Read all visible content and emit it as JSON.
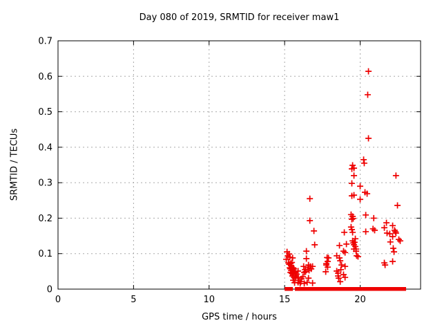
{
  "chart_data": {
    "type": "scatter",
    "title": "Day 080 of 2019, SRMTID for receiver maw1",
    "xlabel": "GPS time / hours",
    "ylabel": "SRMTID / TECUs",
    "xlim": [
      0,
      24
    ],
    "ylim": [
      0,
      0.7
    ],
    "xticks": [
      0,
      5,
      10,
      15,
      20
    ],
    "xtick_labels": [
      "0",
      "5",
      "10",
      "15",
      "20"
    ],
    "yticks": [
      0,
      0.1,
      0.2,
      0.3,
      0.4,
      0.5,
      0.6,
      0.7
    ],
    "ytick_labels": [
      "0",
      "0.1",
      "0.2",
      "0.3",
      "0.4",
      "0.5",
      "0.6",
      "0.7"
    ],
    "grid": true,
    "grid_style": "dotted",
    "legend_position": "none",
    "marker": "plus",
    "marker_color": "#ee0000",
    "grid_color": "#a8a8a8",
    "axis_color": "#000000",
    "background_color": "#ffffff",
    "series": [
      {
        "name": "SRMTID",
        "points": [
          [
            15.16,
            0.105
          ],
          [
            15.21,
            0.094
          ],
          [
            15.3,
            0.099
          ],
          [
            15.34,
            0.09
          ],
          [
            15.53,
            0.088
          ],
          [
            15.11,
            0.084
          ],
          [
            15.25,
            0.074
          ],
          [
            15.3,
            0.07
          ],
          [
            15.39,
            0.072
          ],
          [
            15.43,
            0.066
          ],
          [
            15.48,
            0.075
          ],
          [
            15.34,
            0.06
          ],
          [
            15.39,
            0.057
          ],
          [
            15.43,
            0.052
          ],
          [
            15.48,
            0.06
          ],
          [
            15.52,
            0.055
          ],
          [
            15.57,
            0.06
          ],
          [
            15.62,
            0.057
          ],
          [
            15.39,
            0.047
          ],
          [
            15.48,
            0.044
          ],
          [
            15.57,
            0.048
          ],
          [
            15.62,
            0.042
          ],
          [
            15.66,
            0.051
          ],
          [
            15.71,
            0.047
          ],
          [
            15.52,
            0.037
          ],
          [
            15.62,
            0.033
          ],
          [
            15.71,
            0.031
          ],
          [
            15.57,
            0.025
          ],
          [
            15.75,
            0.037
          ],
          [
            15.8,
            0.042
          ],
          [
            15.89,
            0.051
          ],
          [
            15.89,
            0.033
          ],
          [
            15.94,
            0.025
          ],
          [
            15.89,
            0.019
          ],
          [
            16.03,
            0.016
          ],
          [
            16.12,
            0.029
          ],
          [
            16.21,
            0.035
          ],
          [
            16.26,
            0.064
          ],
          [
            16.3,
            0.047
          ],
          [
            16.35,
            0.055
          ],
          [
            16.39,
            0.049
          ],
          [
            16.44,
            0.086
          ],
          [
            16.44,
            0.107
          ],
          [
            16.53,
            0.06
          ],
          [
            16.58,
            0.068
          ],
          [
            16.58,
            0.031
          ],
          [
            16.62,
            0.053
          ],
          [
            16.71,
            0.064
          ],
          [
            16.76,
            0.057
          ],
          [
            16.85,
            0.064
          ],
          [
            16.94,
            0.164
          ],
          [
            16.99,
            0.125
          ],
          [
            16.67,
            0.255
          ],
          [
            16.67,
            0.193
          ],
          [
            15.66,
            0.018
          ],
          [
            16.08,
            0.021
          ],
          [
            16.3,
            0.016
          ],
          [
            16.49,
            0.019
          ],
          [
            16.85,
            0.017
          ],
          [
            17.72,
            0.049
          ],
          [
            17.76,
            0.068
          ],
          [
            17.76,
            0.072
          ],
          [
            17.81,
            0.089
          ],
          [
            17.85,
            0.062
          ],
          [
            17.85,
            0.078
          ],
          [
            17.9,
            0.088
          ],
          [
            18.45,
            0.051
          ],
          [
            18.54,
            0.045
          ],
          [
            18.54,
            0.037
          ],
          [
            18.58,
            0.031
          ],
          [
            18.63,
            0.088
          ],
          [
            18.63,
            0.123
          ],
          [
            18.68,
            0.08
          ],
          [
            18.77,
            0.068
          ],
          [
            18.9,
            0.107
          ],
          [
            18.9,
            0.041
          ],
          [
            18.95,
            0.16
          ],
          [
            19.0,
            0.103
          ],
          [
            19.0,
            0.064
          ],
          [
            19.0,
            0.033
          ],
          [
            18.68,
            0.021
          ],
          [
            19.09,
            0.127
          ],
          [
            18.45,
            0.094
          ],
          [
            18.72,
            0.055
          ],
          [
            19.45,
            0.339
          ],
          [
            19.5,
            0.349
          ],
          [
            19.59,
            0.341
          ],
          [
            19.59,
            0.32
          ],
          [
            19.45,
            0.298
          ],
          [
            19.59,
            0.265
          ],
          [
            19.45,
            0.263
          ],
          [
            19.4,
            0.21
          ],
          [
            19.45,
            0.197
          ],
          [
            19.5,
            0.205
          ],
          [
            19.54,
            0.199
          ],
          [
            19.4,
            0.175
          ],
          [
            19.45,
            0.168
          ],
          [
            19.5,
            0.16
          ],
          [
            19.68,
            0.142
          ],
          [
            19.5,
            0.136
          ],
          [
            19.54,
            0.13
          ],
          [
            19.59,
            0.125
          ],
          [
            19.63,
            0.132
          ],
          [
            19.68,
            0.12
          ],
          [
            19.73,
            0.113
          ],
          [
            19.59,
            0.113
          ],
          [
            19.73,
            0.107
          ],
          [
            19.77,
            0.094
          ],
          [
            19.86,
            0.092
          ],
          [
            20.0,
            0.29
          ],
          [
            20.0,
            0.253
          ],
          [
            20.23,
            0.365
          ],
          [
            20.27,
            0.355
          ],
          [
            20.32,
            0.273
          ],
          [
            20.46,
            0.269
          ],
          [
            20.37,
            0.209
          ],
          [
            20.37,
            0.162
          ],
          [
            20.55,
            0.614
          ],
          [
            20.5,
            0.548
          ],
          [
            20.55,
            0.425
          ],
          [
            20.85,
            0.17
          ],
          [
            20.9,
            0.2
          ],
          [
            20.96,
            0.166
          ],
          [
            22.37,
            0.32
          ],
          [
            22.47,
            0.236
          ],
          [
            21.74,
            0.187
          ],
          [
            21.6,
            0.173
          ],
          [
            21.78,
            0.158
          ],
          [
            22.15,
            0.179
          ],
          [
            22.28,
            0.166
          ],
          [
            22.33,
            0.162
          ],
          [
            22.37,
            0.158
          ],
          [
            21.96,
            0.156
          ],
          [
            22.15,
            0.148
          ],
          [
            22.0,
            0.133
          ],
          [
            22.56,
            0.14
          ],
          [
            22.65,
            0.136
          ],
          [
            22.19,
            0.115
          ],
          [
            22.24,
            0.105
          ],
          [
            22.15,
            0.078
          ],
          [
            21.6,
            0.074
          ],
          [
            21.65,
            0.068
          ]
        ]
      }
    ],
    "zero_value_band_segments_hours": [
      [
        15.07,
        15.3
      ],
      [
        15.39,
        15.48
      ],
      [
        15.75,
        15.94
      ],
      [
        16.03,
        16.44
      ],
      [
        16.53,
        16.99
      ],
      [
        17.08,
        18.17
      ],
      [
        18.26,
        19.0
      ],
      [
        19.09,
        19.77
      ],
      [
        19.86,
        19.95
      ],
      [
        20.05,
        20.09
      ],
      [
        20.23,
        21.28
      ],
      [
        21.37,
        21.46
      ],
      [
        21.51,
        22.79
      ],
      [
        22.88,
        22.97
      ]
    ]
  }
}
